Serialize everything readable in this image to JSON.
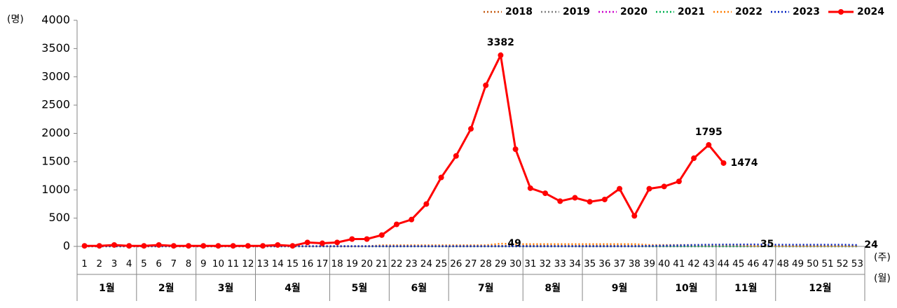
{
  "chart_data": {
    "type": "line",
    "y_label": "(명)",
    "x_label": "(주)",
    "month_label": "(월)",
    "categories": [
      "1",
      "2",
      "3",
      "4",
      "5",
      "6",
      "7",
      "8",
      "9",
      "10",
      "11",
      "12",
      "13",
      "14",
      "15",
      "16",
      "17",
      "18",
      "19",
      "20",
      "21",
      "22",
      "23",
      "24",
      "25",
      "26",
      "27",
      "28",
      "29",
      "30",
      "31",
      "32",
      "33",
      "34",
      "35",
      "36",
      "37",
      "38",
      "39",
      "40",
      "41",
      "42",
      "43",
      "44",
      "45",
      "46",
      "47",
      "48",
      "49",
      "50",
      "51",
      "52",
      "53"
    ],
    "months": {
      "labels": [
        "1월",
        "2월",
        "3월",
        "4월",
        "5월",
        "6월",
        "7월",
        "8월",
        "9월",
        "10월",
        "11월",
        "12월"
      ],
      "weeks": [
        4,
        4,
        4,
        5,
        4,
        4,
        5,
        4,
        5,
        4,
        4,
        6
      ]
    },
    "ylim": [
      0,
      4000
    ],
    "yticks": [
      0,
      500,
      1000,
      1500,
      2000,
      2500,
      3000,
      3500,
      4000
    ],
    "series": [
      {
        "name": "2018",
        "color": "#c55a11",
        "style": "dotted",
        "values": [
          3,
          3,
          3,
          3,
          3,
          3,
          3,
          3,
          3,
          3,
          3,
          3,
          3,
          3,
          3,
          3,
          3,
          3,
          3,
          3,
          10,
          10,
          10,
          10,
          10,
          10,
          10,
          10,
          10,
          10,
          10,
          10,
          10,
          10,
          10,
          10,
          10,
          10,
          10,
          10,
          5,
          5,
          5,
          5,
          5,
          5,
          5,
          5,
          5,
          5,
          5,
          5,
          5
        ]
      },
      {
        "name": "2019",
        "color": "#7f7f7f",
        "style": "dotted",
        "values": [
          2,
          2,
          2,
          2,
          2,
          2,
          2,
          2,
          2,
          2,
          2,
          2,
          2,
          2,
          2,
          2,
          2,
          2,
          2,
          2,
          2,
          2,
          2,
          2,
          2,
          2,
          2,
          2,
          2,
          2,
          2,
          2,
          2,
          2,
          2,
          2,
          2,
          2,
          2,
          2,
          2,
          2,
          2,
          2,
          2,
          2,
          2,
          2,
          2,
          2,
          2,
          2,
          2
        ]
      },
      {
        "name": "2020",
        "color": "#cc00cc",
        "style": "dotted",
        "values": [
          1,
          1,
          1,
          1,
          1,
          1,
          1,
          1,
          1,
          1,
          1,
          1,
          1,
          1,
          1,
          1,
          1,
          1,
          1,
          1,
          1,
          1,
          1,
          1,
          1,
          1,
          1,
          1,
          1,
          1,
          1,
          1,
          1,
          1,
          1,
          1,
          1,
          1,
          1,
          1,
          1,
          1,
          1,
          1,
          1,
          1,
          1,
          1,
          1,
          1,
          1,
          1,
          1
        ]
      },
      {
        "name": "2021",
        "color": "#00b050",
        "style": "dotted",
        "values": [
          1,
          1,
          1,
          1,
          1,
          1,
          1,
          1,
          1,
          1,
          1,
          1,
          1,
          1,
          1,
          1,
          1,
          1,
          1,
          1,
          1,
          1,
          1,
          1,
          1,
          1,
          1,
          1,
          1,
          1,
          1,
          1,
          1,
          1,
          1,
          1,
          1,
          1,
          1,
          1,
          1,
          1,
          1,
          1,
          1,
          1,
          1,
          1,
          1,
          1,
          1,
          1,
          1
        ]
      },
      {
        "name": "2022",
        "color": "#ff7c00",
        "style": "dotted",
        "values": [
          3,
          3,
          3,
          3,
          3,
          3,
          3,
          3,
          3,
          3,
          3,
          3,
          3,
          3,
          3,
          3,
          3,
          3,
          3,
          3,
          20,
          20,
          20,
          20,
          20,
          20,
          20,
          20,
          49,
          40,
          40,
          40,
          40,
          40,
          40,
          40,
          40,
          40,
          25,
          25,
          25,
          25,
          25,
          25,
          25,
          10,
          10,
          10,
          10,
          10,
          10,
          10,
          10
        ],
        "value_labels": [
          null,
          null,
          null,
          null,
          null,
          null,
          null,
          null,
          null,
          null,
          null,
          null,
          null,
          null,
          null,
          null,
          null,
          null,
          null,
          null,
          null,
          null,
          null,
          null,
          null,
          null,
          null,
          null,
          "49",
          null,
          null,
          null,
          null,
          null,
          null,
          null,
          null,
          null,
          null,
          null,
          null,
          null,
          null,
          null,
          null,
          null,
          null,
          null,
          null,
          null,
          null,
          null,
          null
        ]
      },
      {
        "name": "2023",
        "color": "#0020c0",
        "style": "dotted",
        "values": [
          5,
          5,
          5,
          5,
          5,
          5,
          5,
          5,
          5,
          5,
          5,
          5,
          5,
          5,
          5,
          5,
          5,
          5,
          5,
          5,
          5,
          5,
          5,
          5,
          5,
          5,
          5,
          5,
          5,
          5,
          5,
          5,
          5,
          5,
          5,
          5,
          5,
          5,
          10,
          15,
          20,
          25,
          30,
          32,
          33,
          35,
          30,
          30,
          30,
          30,
          30,
          30,
          24
        ],
        "value_labels": [
          null,
          null,
          null,
          null,
          null,
          null,
          null,
          null,
          null,
          null,
          null,
          null,
          null,
          null,
          null,
          null,
          null,
          null,
          null,
          null,
          null,
          null,
          null,
          null,
          null,
          null,
          null,
          null,
          null,
          null,
          null,
          null,
          null,
          null,
          null,
          null,
          null,
          null,
          null,
          null,
          null,
          null,
          null,
          null,
          null,
          "35",
          null,
          null,
          null,
          null,
          null,
          null,
          "24"
        ]
      },
      {
        "name": "2024",
        "color": "#ff0000",
        "style": "solid",
        "values": [
          10,
          10,
          25,
          10,
          10,
          25,
          10,
          10,
          10,
          10,
          10,
          10,
          10,
          25,
          10,
          70,
          55,
          70,
          130,
          130,
          200,
          390,
          475,
          750,
          1220,
          1600,
          2080,
          2850,
          3382,
          1720,
          1030,
          940,
          800,
          860,
          790,
          830,
          1020,
          540,
          1020,
          1060,
          1150,
          1560,
          1795,
          1474,
          null,
          null,
          null,
          null,
          null,
          null,
          null,
          null,
          null
        ],
        "value_labels": [
          null,
          null,
          null,
          null,
          null,
          null,
          null,
          null,
          null,
          null,
          null,
          null,
          null,
          null,
          null,
          null,
          null,
          null,
          null,
          null,
          null,
          null,
          null,
          null,
          null,
          null,
          null,
          null,
          "3382",
          null,
          null,
          null,
          null,
          null,
          null,
          null,
          null,
          null,
          null,
          null,
          null,
          null,
          "1795",
          "1474",
          null,
          null,
          null,
          null,
          null,
          null,
          null,
          null,
          null
        ]
      }
    ]
  }
}
